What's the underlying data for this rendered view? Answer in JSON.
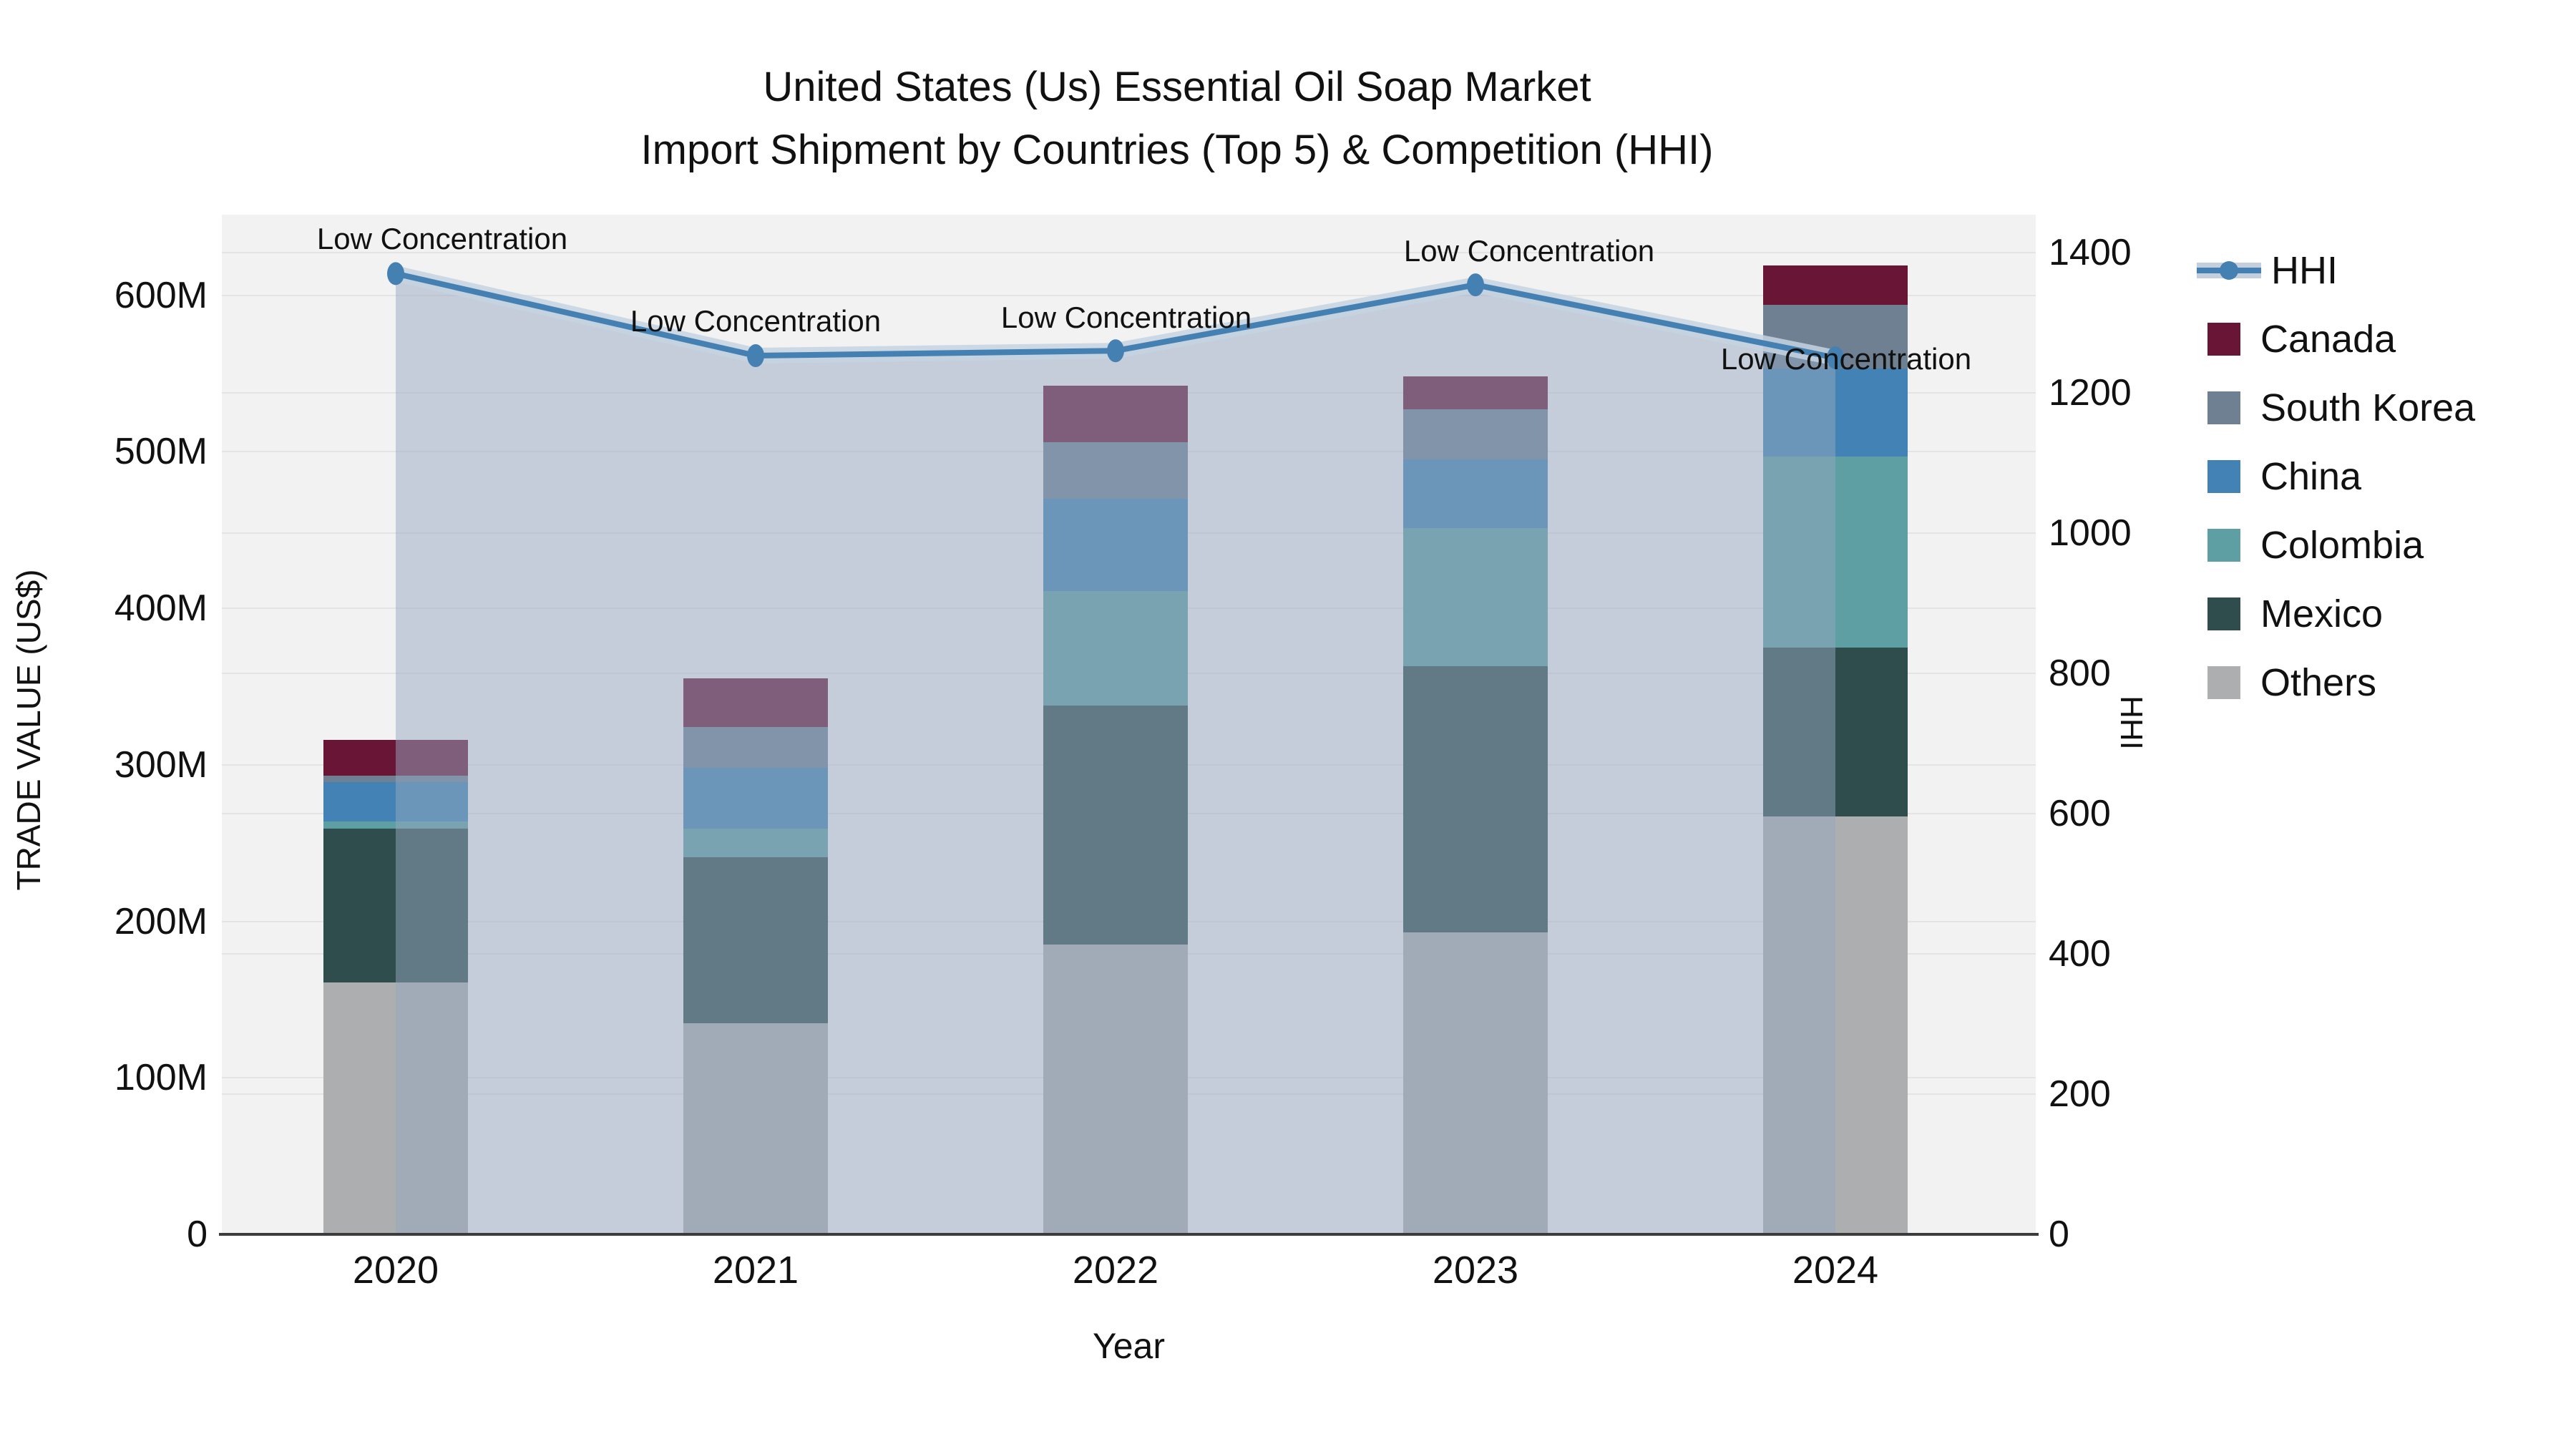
{
  "title": {
    "line1": "United States (Us) Essential Oil Soap Market",
    "line2": "Import Shipment by Countries (Top 5) & Competition (HHI)"
  },
  "axes": {
    "left": {
      "label": "TRADE VALUE (US$)",
      "ticks": [
        "0",
        "100M",
        "200M",
        "300M",
        "400M",
        "500M",
        "600M"
      ]
    },
    "right": {
      "label": "HHI",
      "ticks": [
        "0",
        "200",
        "400",
        "600",
        "800",
        "1000",
        "1200",
        "1400"
      ]
    },
    "bottom": {
      "label": "Year",
      "ticks": [
        "2020",
        "2021",
        "2022",
        "2023",
        "2024"
      ]
    }
  },
  "legend": {
    "items": [
      {
        "label": "HHI",
        "type": "line",
        "color": "#4580b2"
      },
      {
        "label": "Canada",
        "type": "box",
        "color": "#681536"
      },
      {
        "label": "South Korea",
        "type": "box",
        "color": "#6f8093"
      },
      {
        "label": "China",
        "type": "box",
        "color": "#4282b4"
      },
      {
        "label": "Colombia",
        "type": "box",
        "color": "#5d9fa2"
      },
      {
        "label": "Mexico",
        "type": "box",
        "color": "#2e4d4c"
      },
      {
        "label": "Others",
        "type": "box",
        "color": "#adaeb0"
      }
    ]
  },
  "chart_data": {
    "type": "bar",
    "subtype": "stacked-bars-with-line",
    "title": "United States (Us) Essential Oil Soap Market — Import Shipment by Countries (Top 5) & Competition (HHI)",
    "categories": [
      "2020",
      "2021",
      "2022",
      "2023",
      "2024"
    ],
    "value_unit": "Million US$",
    "series": [
      {
        "name": "Others",
        "color": "#adaeb0",
        "values": [
          161,
          135,
          185,
          193,
          267
        ]
      },
      {
        "name": "Mexico",
        "color": "#2e4d4c",
        "values": [
          98,
          106,
          153,
          170,
          108
        ]
      },
      {
        "name": "Colombia",
        "color": "#5d9fa2",
        "values": [
          5,
          18,
          73,
          88,
          122
        ]
      },
      {
        "name": "China",
        "color": "#4282b4",
        "values": [
          25,
          39,
          59,
          44,
          56
        ]
      },
      {
        "name": "South Korea",
        "color": "#6f8093",
        "values": [
          4,
          26,
          36,
          32,
          41
        ]
      },
      {
        "name": "Canada",
        "color": "#681536",
        "values": [
          23,
          31,
          36,
          21,
          25
        ]
      }
    ],
    "bar_totals": [
      316,
      355,
      542,
      548,
      619
    ],
    "line_series": {
      "name": "HHI",
      "color": "#4580b2",
      "area_fill": "rgba(150,167,192,0.5)",
      "values": [
        1370,
        1253,
        1260,
        1354,
        1250
      ]
    },
    "annotations": [
      "Low Concentration",
      "Low Concentration",
      "Low Concentration",
      "Low Concentration",
      "Low Concentration"
    ],
    "xlabel": "Year",
    "ylabel_left": "TRADE VALUE (US$)",
    "ylabel_right": "HHI",
    "ylim_left_M": [
      0,
      651
    ],
    "ylim_right": [
      0,
      1454
    ],
    "grid": true,
    "legend_position": "right"
  }
}
